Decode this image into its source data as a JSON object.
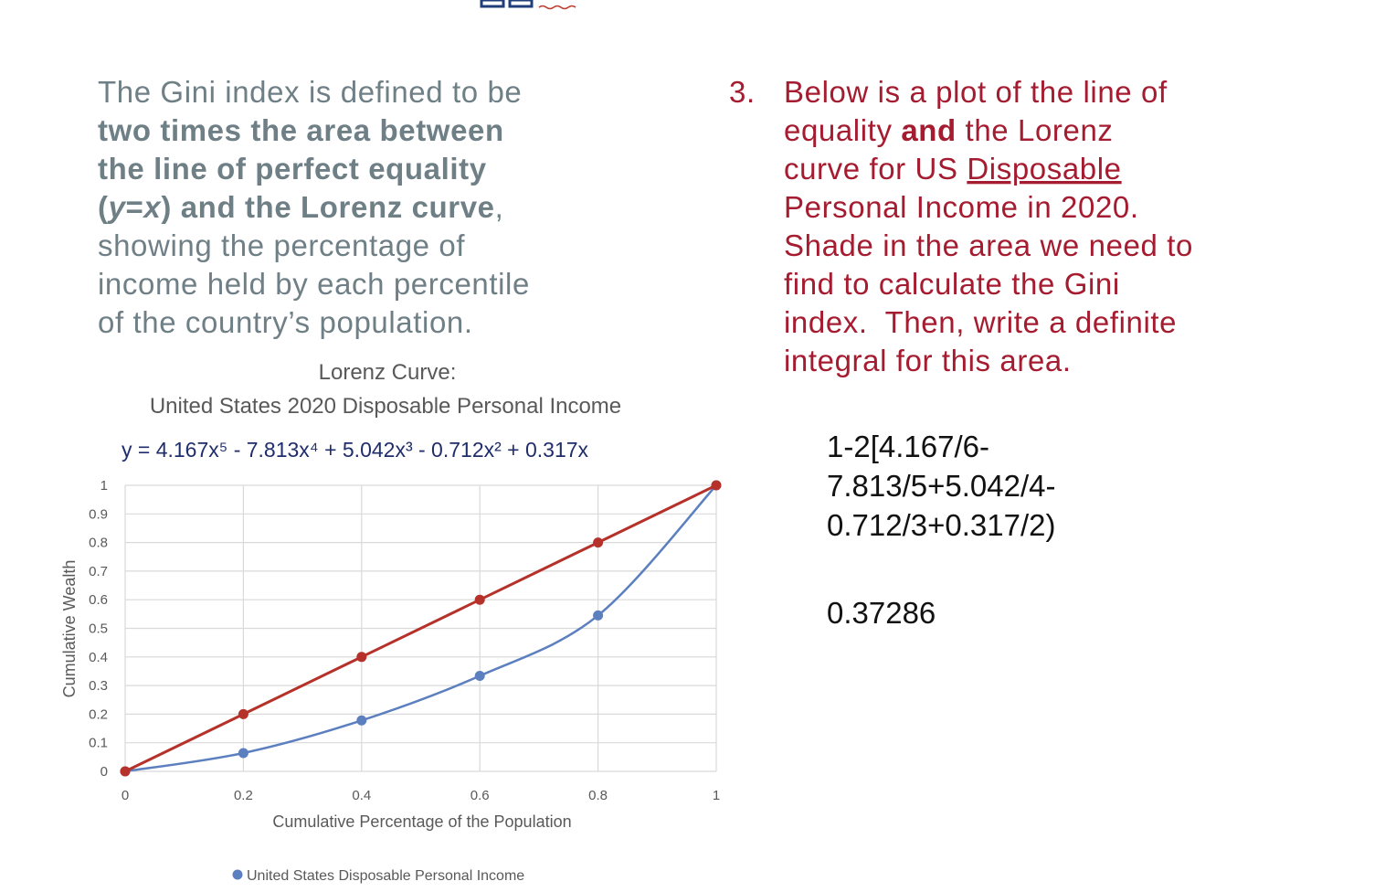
{
  "intro": [
    [
      "The Gini index is defined to be"
    ],
    [
      "two times the area between"
    ],
    [
      "the line of perfect equality"
    ],
    [
      "(",
      "y",
      "=",
      "x",
      ") and the Lorenz curve",
      ","
    ],
    [
      "showing the percentage of"
    ],
    [
      "income held by each percentile"
    ],
    [
      "of the country’s population."
    ]
  ],
  "question": {
    "number": "3.",
    "lines": [
      [
        "Below is a plot of the line of"
      ],
      [
        "equality ",
        "and",
        " the Lorenz"
      ],
      [
        "curve for US ",
        "Disposable"
      ],
      [
        "Personal Income in 2020."
      ],
      [
        "Shade in the area we need to"
      ],
      [
        "find to calculate the Gini"
      ],
      [
        "index.  Then, write a definite"
      ],
      [
        "integral for this area."
      ]
    ]
  },
  "answer": {
    "lines": [
      "1-2[4.167/6-",
      "7.813/5+5.042/4-",
      "0.712/3+0.317/2)"
    ],
    "result": "0.37286"
  },
  "chart_data": {
    "type": "scatter",
    "title": [
      "Lorenz Curve:",
      "United States 2020 Disposable Personal Income"
    ],
    "equation": "y = 4.167x⁵ - 7.813x⁴ + 5.042x³ - 0.712x² + 0.317x",
    "x_label": "Cumulative Percentage of the Population",
    "y_label": "Cumulative Wealth",
    "x": [
      0,
      0.2,
      0.4,
      0.6,
      0.8,
      1
    ],
    "series": [
      {
        "name": "United States Disposable Personal Income",
        "color": "#5b7fbf",
        "values": [
          0,
          0.064,
          0.178,
          0.334,
          0.545,
          1
        ],
        "smooth": true
      },
      {
        "color": "#b5312a",
        "values": [
          0,
          0.2,
          0.4,
          0.6,
          0.8,
          1
        ],
        "smooth": false
      }
    ],
    "xlim": [
      0,
      1
    ],
    "ylim": [
      0,
      1
    ],
    "xticks": [
      0,
      0.2,
      0.4,
      0.6,
      0.8,
      1
    ],
    "yticks": [
      0,
      0.1,
      0.2,
      0.3,
      0.4,
      0.5,
      0.6,
      0.7,
      0.8,
      0.9,
      1
    ],
    "grid": true,
    "legend": "bottom"
  }
}
